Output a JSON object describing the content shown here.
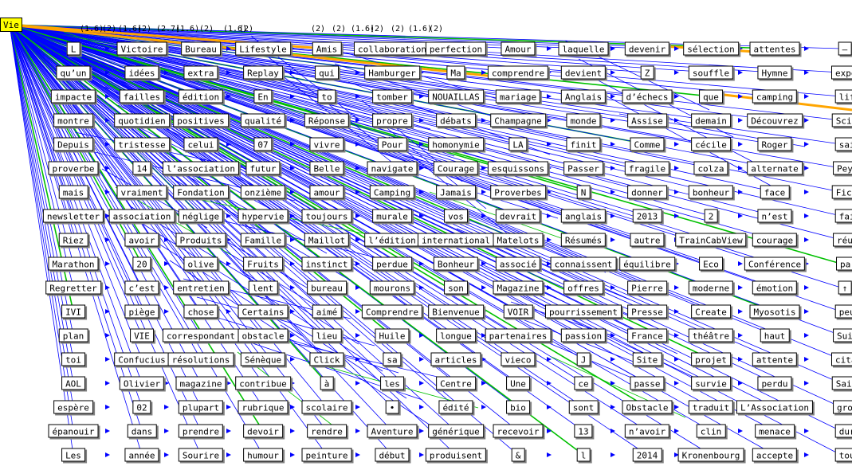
{
  "root": {
    "label": "Vie"
  },
  "edge_tags": [
    "(1.6)",
    "(2)",
    "(1.6)",
    "(2)",
    "(2.7)",
    "(1.6)",
    "(2)",
    "(1.6)",
    "(2)",
    "(2)",
    "(2)",
    "(1.6)",
    "(2)",
    "(2)",
    "(1.6)",
    "(2)"
  ],
  "colors": {
    "edge": "#0000ff",
    "edge_strong": "#00c000",
    "edge_highlight": "#ffa500",
    "root_fill": "#ffff00"
  },
  "rows": [
    [
      "L",
      "Victoire",
      "Bureau",
      "Lifestyle",
      "Amis",
      "collaboration",
      "perfection",
      "Amour",
      "laquelle",
      "devenir",
      "sélection",
      "attentes",
      "–"
    ],
    [
      "qu’un",
      "idées",
      "extra",
      "Replay",
      "qui",
      "Hamburger",
      "Ma",
      "comprendre",
      "devient",
      "Z",
      "souffle",
      "Hymne",
      "expédition"
    ],
    [
      "impacte",
      "failles",
      "édition",
      "En",
      "to",
      "tomber",
      "NOUAILLAS",
      "mariage",
      "Anglais",
      "d’échecs",
      "que",
      "camping",
      "life"
    ],
    [
      "montre",
      "quotidien",
      "positives",
      "qualité",
      "Réponse",
      "propre",
      "débats",
      "Champagne",
      "monde",
      "Assise",
      "demain",
      "Découvrez",
      "Science"
    ],
    [
      "Depuis",
      "tristesse",
      "celui",
      "07",
      "vivre",
      "Pour",
      "homonymie",
      "LA",
      "finit",
      "Comme",
      "cécile",
      "Roger",
      "sais"
    ],
    [
      "proverbe",
      "14",
      "l’association",
      "futur",
      "Belle",
      "navigate",
      "Courage",
      "esquissons",
      "Passer",
      "fragile",
      "colza",
      "alternate",
      "Peyron"
    ],
    [
      "mais",
      "vraiment",
      "Fondation",
      "onzième",
      "amour",
      "Camping",
      "Jamais",
      "Proverbes",
      "N",
      "donner",
      "bonheur",
      "face",
      "Fiction"
    ],
    [
      "newsletter",
      "association",
      "néglige",
      "hypervie",
      "toujours",
      "murale",
      "vos",
      "devrait",
      "anglais",
      "2013",
      "2",
      "n’est",
      "fait"
    ],
    [
      "Riez",
      "avoir",
      "Produits",
      "Famille",
      "Maillot",
      "l’édition",
      "international",
      "Matelots",
      "Résumés",
      "autre",
      "TrainCabView",
      "courage",
      "réunie"
    ],
    [
      "Marathon",
      "20",
      "olive",
      "Fruits",
      "instinct",
      "perdue",
      "Bonheur",
      "associé",
      "connaissent",
      "équilibre",
      "Eco",
      "Conférence",
      "par"
    ],
    [
      "Regretter",
      "c’est",
      "entretien",
      "lent",
      "bureau",
      "mourons",
      "son",
      "Magazine",
      "offres",
      "Pierre",
      "moderne",
      "émotion",
      "↑"
    ],
    [
      "IVI",
      "piège",
      "chose",
      "Certains",
      "aimé",
      "Comprendre",
      "Bienvenue",
      "VOIR",
      "pourrissement",
      "Presse",
      "Create",
      "Myosotis",
      "peux"
    ],
    [
      "plan",
      "VIE",
      "correspondant",
      "obstacle",
      "lieu",
      "Huile",
      "longue",
      "partenaires",
      "passion",
      "France",
      "théâtre",
      "haut",
      "Suivre"
    ],
    [
      "toi",
      "Confucius",
      "résolutions",
      "Sénèque",
      "Click",
      "sa",
      "articles",
      "vieco",
      "J",
      "Site",
      "projet",
      "attente",
      "citation"
    ],
    [
      "AOL",
      "Olivier",
      "magazine",
      "contribue",
      "à",
      "les",
      "Centre",
      "Une",
      "ce",
      "passe",
      "survie",
      "perdu",
      "Sailing"
    ],
    [
      "espère",
      "02",
      "plupart",
      "rubrique",
      "scolaire",
      "•",
      "édité",
      "bio",
      "sont",
      "Obstacle",
      "traduit",
      "L’Association",
      "groupe"
    ],
    [
      "épanouir",
      "dans",
      "prendre",
      "devoir",
      "rendre",
      "Aventure",
      "générique",
      "recevoir",
      "13",
      "n’avoir",
      "clin",
      "menace",
      "dure"
    ],
    [
      "Les",
      "année",
      "Sourire",
      "humour",
      "peinture",
      "début",
      "produisent",
      "&",
      "l",
      "2014",
      "Kronenbourg",
      "accepte",
      "tout"
    ]
  ]
}
